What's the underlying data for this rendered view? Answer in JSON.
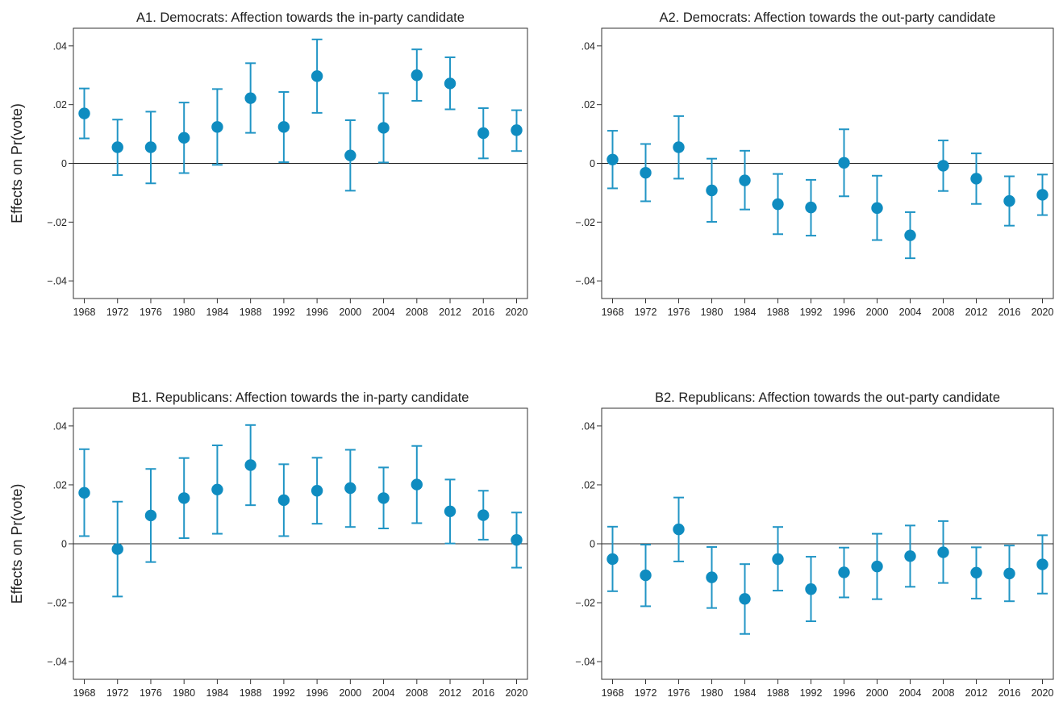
{
  "figure": {
    "ylabel": "Effects on Pr(vote)",
    "colors": {
      "marker": "#0f8cc0",
      "errorbar": "#2195c5",
      "axis": "#333333",
      "zero_line": "#222222"
    }
  },
  "chart_data": [
    {
      "type": "scatter",
      "title": "A1. Democrats: Affection towards the in-party candidate",
      "ylabel": "Effects on Pr(vote)",
      "ylim": [
        -0.046,
        0.046
      ],
      "yticks": [
        -0.04,
        -0.02,
        0,
        0.02,
        0.04
      ],
      "ytick_labels": [
        "−.04",
        "−.02",
        "0",
        ".02",
        ".04"
      ],
      "zero_line": true,
      "x": [
        "1968",
        "1972",
        "1976",
        "1980",
        "1984",
        "1988",
        "1992",
        "1996",
        "2000",
        "2004",
        "2008",
        "2012",
        "2016",
        "2020"
      ],
      "y": [
        0.017,
        0.0055,
        0.0055,
        0.0087,
        0.0124,
        0.0222,
        0.0124,
        0.0297,
        0.0027,
        0.0121,
        0.03,
        0.0272,
        0.0103,
        0.0113
      ],
      "ci_low": [
        0.0085,
        -0.004,
        -0.0068,
        -0.0033,
        -0.0005,
        0.0104,
        0.0004,
        0.0172,
        -0.0093,
        0.0003,
        0.0213,
        0.0184,
        0.0017,
        0.0042
      ],
      "ci_high": [
        0.0255,
        0.0149,
        0.0176,
        0.0207,
        0.0253,
        0.0341,
        0.0243,
        0.0422,
        0.0147,
        0.0239,
        0.0388,
        0.0361,
        0.0188,
        0.0181
      ]
    },
    {
      "type": "scatter",
      "title": "A2. Democrats: Affection towards the out-party candidate",
      "ylabel": "",
      "ylim": [
        -0.046,
        0.046
      ],
      "yticks": [
        -0.04,
        -0.02,
        0,
        0.02,
        0.04
      ],
      "ytick_labels": [
        "−.04",
        "−.02",
        "0",
        ".02",
        ".04"
      ],
      "zero_line": true,
      "x": [
        "1968",
        "1972",
        "1976",
        "1980",
        "1984",
        "1988",
        "1992",
        "1996",
        "2000",
        "2004",
        "2008",
        "2012",
        "2016",
        "2020"
      ],
      "y": [
        0.0013,
        -0.0032,
        0.0055,
        -0.0092,
        -0.0058,
        -0.0139,
        -0.015,
        0.0002,
        -0.0152,
        -0.0245,
        -0.0008,
        -0.0052,
        -0.0128,
        -0.0107
      ],
      "ci_low": [
        -0.0085,
        -0.0129,
        -0.0052,
        -0.0199,
        -0.0157,
        -0.0241,
        -0.0246,
        -0.0112,
        -0.0261,
        -0.0323,
        -0.0094,
        -0.0138,
        -0.0212,
        -0.0176
      ],
      "ci_high": [
        0.0111,
        0.0066,
        0.0161,
        0.0016,
        0.0043,
        -0.0036,
        -0.0056,
        0.0116,
        -0.0042,
        -0.0166,
        0.0078,
        0.0034,
        -0.0044,
        -0.0038
      ]
    },
    {
      "type": "scatter",
      "title": "B1. Republicans: Affection towards the in-party candidate",
      "ylabel": "Effects on Pr(vote)",
      "ylim": [
        -0.046,
        0.046
      ],
      "yticks": [
        -0.04,
        -0.02,
        0,
        0.02,
        0.04
      ],
      "ytick_labels": [
        "−.04",
        "−.02",
        "0",
        ".02",
        ".04"
      ],
      "zero_line": true,
      "x": [
        "1968",
        "1972",
        "1976",
        "1980",
        "1984",
        "1988",
        "1992",
        "1996",
        "2000",
        "2004",
        "2008",
        "2012",
        "2016",
        "2020"
      ],
      "y": [
        0.0173,
        -0.0018,
        0.0096,
        0.0155,
        0.0184,
        0.0267,
        0.0148,
        0.018,
        0.0189,
        0.0155,
        0.0201,
        0.011,
        0.0097,
        0.0013
      ],
      "ci_low": [
        0.0026,
        -0.0179,
        -0.0062,
        0.0019,
        0.0034,
        0.0131,
        0.0026,
        0.0068,
        0.0057,
        0.0052,
        0.007,
        0.0001,
        0.0014,
        -0.0081
      ],
      "ci_high": [
        0.0321,
        0.0143,
        0.0254,
        0.0291,
        0.0334,
        0.0403,
        0.027,
        0.0292,
        0.0319,
        0.0259,
        0.0332,
        0.0218,
        0.018,
        0.0106
      ]
    },
    {
      "type": "scatter",
      "title": "B2. Republicans: Affection towards the out-party candidate",
      "ylabel": "",
      "ylim": [
        -0.046,
        0.046
      ],
      "yticks": [
        -0.04,
        -0.02,
        0,
        0.02,
        0.04
      ],
      "ytick_labels": [
        "−.04",
        "−.02",
        "0",
        ".02",
        ".04"
      ],
      "zero_line": true,
      "x": [
        "1968",
        "1972",
        "1976",
        "1980",
        "1984",
        "1988",
        "1992",
        "1996",
        "2000",
        "2004",
        "2008",
        "2012",
        "2016",
        "2020"
      ],
      "y": [
        -0.0052,
        -0.0107,
        0.0049,
        -0.0114,
        -0.0187,
        -0.0052,
        -0.0154,
        -0.0097,
        -0.0077,
        -0.0042,
        -0.0029,
        -0.0098,
        -0.0101,
        -0.007
      ],
      "ci_low": [
        -0.0161,
        -0.0212,
        -0.006,
        -0.0218,
        -0.0306,
        -0.0159,
        -0.0263,
        -0.0182,
        -0.0188,
        -0.0146,
        -0.0133,
        -0.0186,
        -0.0195,
        -0.0169
      ],
      "ci_high": [
        0.0058,
        -0.0003,
        0.0157,
        -0.0011,
        -0.0069,
        0.0057,
        -0.0044,
        -0.0013,
        0.0034,
        0.0062,
        0.0077,
        -0.0012,
        -0.0006,
        0.0029
      ]
    }
  ]
}
